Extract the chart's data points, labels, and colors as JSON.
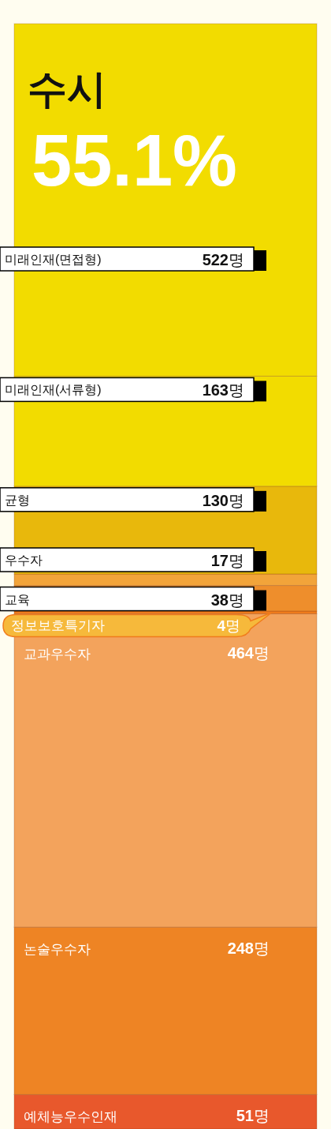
{
  "chart_data": {
    "type": "bar",
    "stacked": true,
    "title": "수시",
    "subtitle": "55.1%",
    "categories": [
      null
    ],
    "series": [
      {
        "name": "예체능우수인재",
        "color": "#e8582c",
        "values": [
          51
        ],
        "value_labels": [
          "51명"
        ]
      },
      {
        "name": "논술우수자",
        "color": "#ee8424",
        "values": [
          248
        ],
        "value_labels": [
          "248명"
        ]
      },
      {
        "name": "교과우수자",
        "color": "#f3a35c",
        "values": [
          464
        ],
        "value_labels": [
          "464명"
        ]
      },
      {
        "name": "정보보호특기자",
        "color": "#f07c1c",
        "values": [
          4
        ],
        "value_labels": [
          "4명"
        ]
      },
      {
        "name": "교육",
        "color": "#ee8e2c",
        "values": [
          38
        ],
        "value_labels": [
          "38명"
        ]
      },
      {
        "name": "우수자",
        "color": "#f2a43a",
        "values": [
          17
        ],
        "value_labels": [
          "17명"
        ]
      },
      {
        "name": "균형",
        "color": "#e8b80c",
        "values": [
          130
        ],
        "value_labels": [
          "130명"
        ]
      },
      {
        "name": "미래인재(서류형)",
        "color": "#f2dc00",
        "values": [
          163
        ],
        "value_labels": [
          "163명"
        ]
      },
      {
        "name": "미래인재(면접형)",
        "color": "#f2dc00",
        "values": [
          522
        ],
        "value_labels": [
          "522명"
        ]
      }
    ]
  }
}
